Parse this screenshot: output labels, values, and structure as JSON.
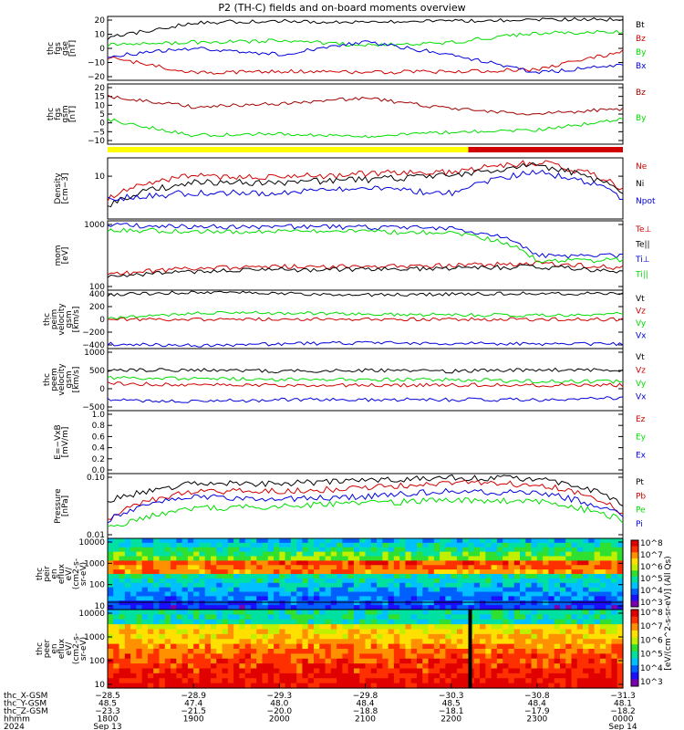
{
  "title": "P2 (TH-C) fields and on-board moments overview",
  "colors": {
    "black": "#000000",
    "red": "#d00000",
    "green": "#00dd00",
    "blue": "#0000dd",
    "darkred": "#a00000",
    "yellow": "#ffff00"
  },
  "panels": [
    {
      "id": "fgs-gse",
      "ylabel": [
        "thc",
        "fgs",
        "gse",
        "[nT]"
      ],
      "yticks": [
        "20",
        "10",
        "0",
        "−10",
        "−20"
      ],
      "legend": [
        {
          "t": "Bt",
          "c": "black"
        },
        {
          "t": "Bz",
          "c": "red"
        },
        {
          "t": "By",
          "c": "green"
        },
        {
          "t": "Bx",
          "c": "blue"
        }
      ]
    },
    {
      "id": "fgs-gsm",
      "ylabel": [
        "thc",
        "fgs",
        "gsm",
        "[nT]"
      ],
      "yticks": [
        "20",
        "15",
        "10",
        "5",
        "0",
        "−5",
        "−10"
      ],
      "legend": [
        {
          "t": "Bz",
          "c": "darkred"
        },
        {
          "t": "By",
          "c": "green"
        }
      ]
    },
    {
      "id": "density",
      "ylabel": [
        "Density",
        "[cm−3]"
      ],
      "yticks": [
        "10"
      ],
      "legend": [
        {
          "t": "Ne",
          "c": "red"
        },
        {
          "t": "Ni",
          "c": "black"
        },
        {
          "t": "Npot",
          "c": "blue"
        }
      ]
    },
    {
      "id": "temp",
      "ylabel": [
        "mom",
        "[eV]"
      ],
      "yticks": [
        "1000",
        "100"
      ],
      "legend": [
        {
          "t": "Te⊥",
          "c": "red"
        },
        {
          "t": "Te||",
          "c": "black"
        },
        {
          "t": "Ti⊥",
          "c": "blue"
        },
        {
          "t": "Ti||",
          "c": "green"
        }
      ]
    },
    {
      "id": "peim-vel",
      "ylabel": [
        "thc",
        "peim",
        "velocity",
        "gsm",
        "[km/s]"
      ],
      "yticks": [
        "400",
        "200",
        "0",
        "−200",
        "−400"
      ],
      "legend": [
        {
          "t": "Vt",
          "c": "black"
        },
        {
          "t": "Vz",
          "c": "red"
        },
        {
          "t": "Vy",
          "c": "green"
        },
        {
          "t": "Vx",
          "c": "blue"
        }
      ]
    },
    {
      "id": "peem-vel",
      "ylabel": [
        "thc",
        "peem",
        "velocity",
        "gsm",
        "[km/s]"
      ],
      "yticks": [
        "1000",
        "500",
        "0",
        "−500"
      ],
      "legend": [
        {
          "t": "Vt",
          "c": "black"
        },
        {
          "t": "Vz",
          "c": "red"
        },
        {
          "t": "Vy",
          "c": "green"
        },
        {
          "t": "Vx",
          "c": "blue"
        }
      ]
    },
    {
      "id": "efield",
      "ylabel": [
        "E=−VxB",
        "[mV/m]"
      ],
      "yticks": [
        "1.0",
        "0.8",
        "0.6",
        "0.4",
        "0.2",
        "0.0"
      ],
      "legend": [
        {
          "t": "Ez",
          "c": "red"
        },
        {
          "t": "Ey",
          "c": "green"
        },
        {
          "t": "Ex",
          "c": "blue"
        }
      ]
    },
    {
      "id": "pressure",
      "ylabel": [
        "Pressure",
        "[nPa]"
      ],
      "yticks": [
        "0.10",
        "0.01"
      ],
      "legend": [
        {
          "t": "Pt",
          "c": "black"
        },
        {
          "t": "Pb",
          "c": "red"
        },
        {
          "t": "Pe",
          "c": "green"
        },
        {
          "t": "Pi",
          "c": "blue"
        }
      ]
    },
    {
      "id": "peir",
      "ylabel": [
        "thc",
        "peir",
        "en",
        "eflux",
        "eV/",
        "(cm2-s-",
        "sr-eV)"
      ],
      "yticks": [
        "10000",
        "1000",
        "100",
        "10"
      ]
    },
    {
      "id": "peer",
      "ylabel": [
        "thc",
        "peer",
        "en",
        "eflux",
        "eV/",
        "(cm2-s-",
        "sr-eV)"
      ],
      "yticks": [
        "10000",
        "1000",
        "100",
        "10"
      ]
    }
  ],
  "colorbar": {
    "label": "[eV/(cm^2-s-sr-eV)] (All Qs)",
    "ticks_top": [
      "10^8",
      "10^7",
      "10^6",
      "10^5",
      "10^4",
      "10^3"
    ],
    "ticks_bottom": [
      "10^8",
      "10^7",
      "10^6",
      "10^5",
      "10^4",
      "10^3"
    ]
  },
  "footer": {
    "row_labels": [
      "thc_X-GSM",
      "thc_Y-GSM",
      "thc_Z-GSM",
      "hhmm",
      "2024"
    ],
    "columns": [
      [
        "−28.5",
        "48.5",
        "−23.3",
        "1800",
        "Sep 13"
      ],
      [
        "−28.9",
        "47.4",
        "−21.5",
        "1900",
        ""
      ],
      [
        "−29.3",
        "48.0",
        "−20.0",
        "2000",
        ""
      ],
      [
        "−29.8",
        "48.4",
        "−18.8",
        "2100",
        ""
      ],
      [
        "−30.3",
        "48.5",
        "−18.1",
        "2200",
        ""
      ],
      [
        "−30.8",
        "48.4",
        "−17.9",
        "2300",
        ""
      ],
      [
        "−31.3",
        "48.1",
        "−18.2",
        "0000",
        "Sep 14"
      ]
    ]
  },
  "chart_data": [
    {
      "type": "line",
      "title": "P2 (TH-C) fields and on-board moments overview",
      "x": [
        "1800",
        "1900",
        "2000",
        "2100",
        "2200",
        "2300",
        "0000"
      ],
      "ylim": [
        -20,
        22
      ],
      "series": [
        {
          "name": "Bt",
          "values": [
            8,
            18,
            19,
            18,
            19,
            20,
            20
          ]
        },
        {
          "name": "Bz",
          "values": [
            -5,
            -15,
            -14,
            -15,
            -14,
            -13,
            -1
          ]
        },
        {
          "name": "By",
          "values": [
            3,
            5,
            6,
            3,
            5,
            11,
            12
          ]
        },
        {
          "name": "Bx",
          "values": [
            -4,
            1,
            -3,
            5,
            -3,
            -15,
            -10
          ]
        }
      ]
    },
    {
      "type": "line",
      "x": [
        "1800",
        "1900",
        "2000",
        "2100",
        "2200",
        "2300",
        "0000"
      ],
      "ylim": [
        -12,
        22
      ],
      "series": [
        {
          "name": "Bz",
          "values": [
            15,
            9,
            11,
            14,
            8,
            5,
            8
          ]
        },
        {
          "name": "By",
          "values": [
            2,
            -7,
            -6,
            -8,
            -5,
            -4,
            2
          ]
        }
      ]
    },
    {
      "type": "line",
      "x": [
        "1800",
        "1900",
        "2000",
        "2100",
        "2200",
        "2300",
        "0000"
      ],
      "series": [
        {
          "name": "Ne",
          "values": [
            3,
            10,
            9,
            11,
            12,
            20,
            5
          ]
        },
        {
          "name": "Ni",
          "values": [
            2,
            7,
            7,
            8,
            10,
            17,
            4
          ]
        },
        {
          "name": "Npot",
          "values": [
            3,
            4,
            4,
            5,
            4,
            12,
            3
          ]
        }
      ]
    },
    {
      "type": "line",
      "x": [
        "1800",
        "1900",
        "2000",
        "2100",
        "2200",
        "2300",
        "0000"
      ],
      "series": [
        {
          "name": "Te⊥",
          "values": [
            30,
            50,
            55,
            55,
            60,
            70,
            50
          ]
        },
        {
          "name": "Te||",
          "values": [
            25,
            40,
            45,
            45,
            50,
            55,
            40
          ]
        },
        {
          "name": "Ti⊥",
          "values": [
            1100,
            1000,
            1000,
            950,
            900,
            120,
            120
          ]
        },
        {
          "name": "Ti||",
          "values": [
            800,
            700,
            700,
            700,
            650,
            80,
            90
          ]
        }
      ]
    },
    {
      "type": "line",
      "x": [
        "1800",
        "1900",
        "2000",
        "2100",
        "2200",
        "2300",
        "0000"
      ],
      "ylim": [
        -450,
        450
      ],
      "series": [
        {
          "name": "Vt",
          "values": [
            380,
            420,
            400,
            380,
            390,
            400,
            400
          ]
        },
        {
          "name": "Vz",
          "values": [
            0,
            0,
            0,
            0,
            0,
            0,
            0
          ]
        },
        {
          "name": "Vy",
          "values": [
            10,
            100,
            100,
            80,
            70,
            60,
            90
          ]
        },
        {
          "name": "Vx",
          "values": [
            -380,
            -400,
            -380,
            -360,
            -370,
            -380,
            -380
          ]
        }
      ]
    },
    {
      "type": "line",
      "x": [
        "1800",
        "1900",
        "2000",
        "2100",
        "2200",
        "2300",
        "0000"
      ],
      "ylim": [
        -700,
        1000
      ],
      "series": [
        {
          "name": "Vt",
          "values": [
            400,
            420,
            380,
            400,
            380,
            420,
            400
          ]
        },
        {
          "name": "Vz",
          "values": [
            50,
            0,
            0,
            0,
            0,
            0,
            0
          ]
        },
        {
          "name": "Vy",
          "values": [
            200,
            180,
            150,
            150,
            150,
            100,
            100
          ]
        },
        {
          "name": "Vx",
          "values": [
            -400,
            -450,
            -400,
            -400,
            -400,
            -400,
            -350
          ]
        }
      ]
    },
    {
      "type": "line",
      "x": [
        "1800",
        "1900",
        "2000",
        "2100",
        "2200",
        "2300",
        "0000"
      ],
      "ylim": [
        0,
        1
      ],
      "series": []
    },
    {
      "type": "line",
      "x": [
        "1800",
        "1900",
        "2000",
        "2100",
        "2200",
        "2300",
        "0000"
      ],
      "series": [
        {
          "name": "Pt",
          "values": [
            0.06,
            0.17,
            0.17,
            0.2,
            0.24,
            0.23,
            0.05
          ]
        },
        {
          "name": "Pb",
          "values": [
            0.02,
            0.11,
            0.11,
            0.13,
            0.18,
            0.16,
            0.03
          ]
        },
        {
          "name": "Pe",
          "values": [
            0.012,
            0.04,
            0.045,
            0.055,
            0.065,
            0.06,
            0.02
          ]
        },
        {
          "name": "Pi",
          "values": [
            0.02,
            0.08,
            0.07,
            0.08,
            0.11,
            0.1,
            0.025
          ]
        }
      ]
    },
    {
      "type": "heatmap",
      "x": [
        "1800",
        "1900",
        "2000",
        "2100",
        "2200",
        "2300",
        "0000"
      ],
      "yticks": [
        10,
        100,
        1000,
        10000
      ]
    },
    {
      "type": "heatmap",
      "x": [
        "1800",
        "1900",
        "2000",
        "2100",
        "2200",
        "2300",
        "0000"
      ],
      "yticks": [
        10,
        100,
        1000,
        10000
      ]
    }
  ]
}
